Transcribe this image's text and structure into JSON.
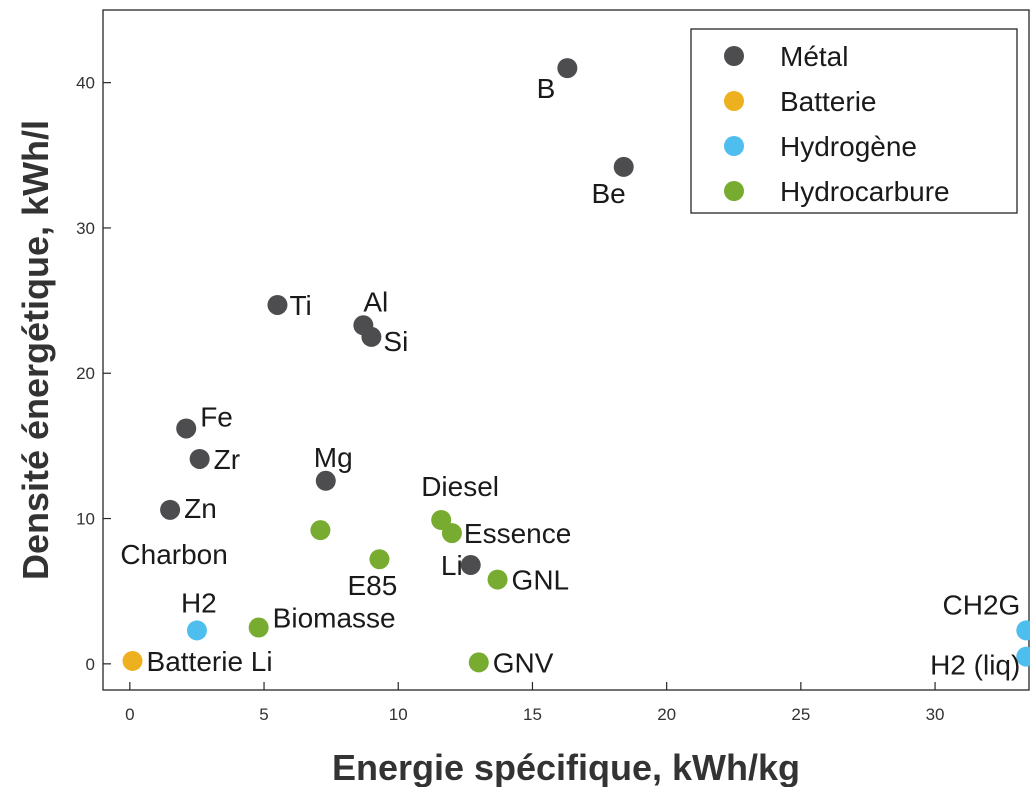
{
  "chart_data": {
    "type": "scatter",
    "xlabel": "Energie spécifique, kWh/kg",
    "ylabel": "Densité énergétique, kWh/l",
    "xlim": [
      -1,
      33.5
    ],
    "ylim": [
      -1.8,
      45
    ],
    "xticks": [
      0,
      5,
      10,
      15,
      20,
      25,
      30
    ],
    "yticks": [
      0,
      10,
      20,
      30,
      40
    ],
    "grid": false,
    "legend_position": "top-right",
    "colors": {
      "Métal": "#4d4d4f",
      "Batterie": "#edb120",
      "Hydrogène": "#4dbeee",
      "Hydrocarbure": "#77ac30"
    },
    "series": [
      {
        "name": "Métal",
        "points": [
          {
            "label": "B",
            "x": 16.3,
            "y": 41.0
          },
          {
            "label": "Be",
            "x": 18.4,
            "y": 34.2
          },
          {
            "label": "Ti",
            "x": 5.5,
            "y": 24.7
          },
          {
            "label": "Al",
            "x": 8.7,
            "y": 23.3
          },
          {
            "label": "Si",
            "x": 9.0,
            "y": 22.5
          },
          {
            "label": "Fe",
            "x": 2.1,
            "y": 16.2
          },
          {
            "label": "Zr",
            "x": 2.6,
            "y": 14.1
          },
          {
            "label": "Mg",
            "x": 7.3,
            "y": 12.6
          },
          {
            "label": "Zn",
            "x": 1.5,
            "y": 10.6
          },
          {
            "label": "Li",
            "x": 12.7,
            "y": 6.8
          }
        ]
      },
      {
        "name": "Batterie",
        "points": [
          {
            "label": "Batterie Li",
            "x": 0.1,
            "y": 0.2
          }
        ]
      },
      {
        "name": "Hydrogène",
        "points": [
          {
            "label": "H2",
            "x": 2.5,
            "y": 2.3
          },
          {
            "label": "CH2G",
            "x": 33.4,
            "y": 2.3
          },
          {
            "label": "H2 (liq)",
            "x": 33.4,
            "y": 0.5
          }
        ]
      },
      {
        "name": "Hydrocarbure",
        "points": [
          {
            "label": "Diesel",
            "x": 11.6,
            "y": 9.9
          },
          {
            "label": "Essence",
            "x": 12.0,
            "y": 9.0
          },
          {
            "label": "Charbon",
            "x": 7.1,
            "y": 9.2
          },
          {
            "label": "E85",
            "x": 9.3,
            "y": 7.2
          },
          {
            "label": "GNL",
            "x": 13.7,
            "y": 5.8
          },
          {
            "label": "Biomasse",
            "x": 4.8,
            "y": 2.5
          },
          {
            "label": "GNV",
            "x": 13.0,
            "y": 0.1
          }
        ]
      }
    ]
  }
}
